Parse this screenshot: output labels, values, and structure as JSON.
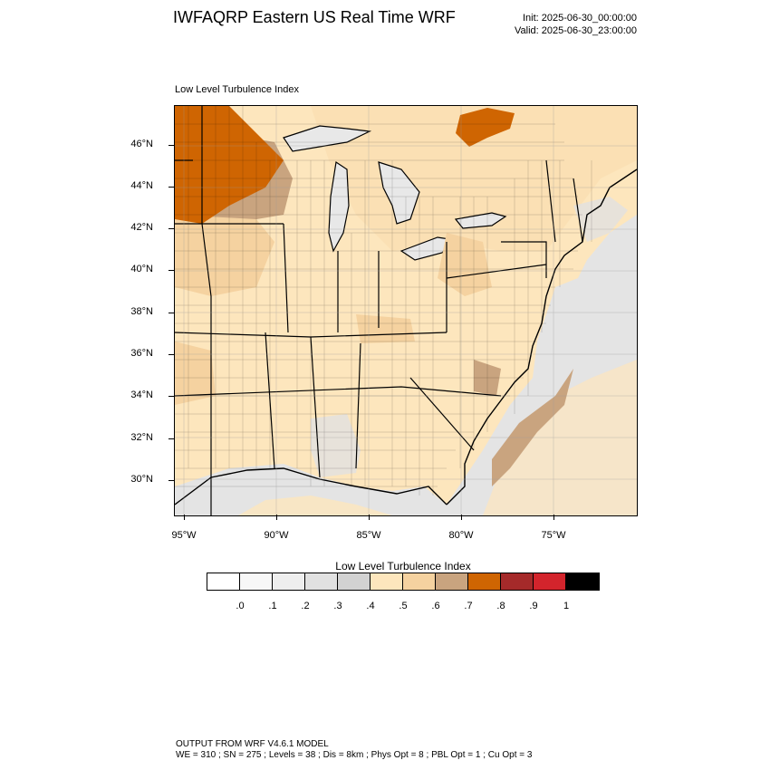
{
  "header": {
    "title": "IWFAQRP Eastern US Real Time WRF",
    "init": "Init: 2025-06-30_00:00:00",
    "valid": "Valid: 2025-06-30_23:00:00"
  },
  "panel_title": "Low Level Turbulence Index",
  "axes": {
    "lat_labels": [
      "46°N",
      "44°N",
      "42°N",
      "40°N",
      "38°N",
      "36°N",
      "34°N",
      "32°N",
      "30°N"
    ],
    "lon_labels": [
      "95°W",
      "90°W",
      "85°W",
      "80°W",
      "75°W"
    ]
  },
  "legend": {
    "title": "Low Level Turbulence Index",
    "colors": [
      "#ffffff",
      "#f7f7f7",
      "#eeeeee",
      "#e1e1e1",
      "#d2d2d2",
      "#fde6bd",
      "#f5d2a0",
      "#c9a47f",
      "#cf6502",
      "#a52a2a",
      "#d3242c",
      "#000000"
    ],
    "ticks": [
      ".0",
      ".1",
      ".2",
      ".3",
      ".4",
      ".5",
      ".6",
      ".7",
      ".8",
      ".9",
      "1"
    ]
  },
  "colors": {
    "land_base": "#fde6bd",
    "water": "#e1e1e1",
    "great_lakes": "#e6e6e6",
    "elevated": "#f5d2a0",
    "high": "#c9a47f",
    "very_high": "#cf6502"
  },
  "footer": {
    "line1": "OUTPUT FROM WRF V4.6.1 MODEL",
    "line2": "WE = 310 ; SN = 275 ; Levels = 38 ; Dis = 8km ; Phys Opt = 8 ; PBL Opt = 1 ; Cu Opt = 3"
  }
}
